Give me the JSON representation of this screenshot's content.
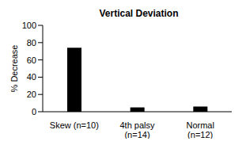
{
  "chart_data": {
    "type": "bar",
    "title": "Vertical Deviation",
    "y_label": "% Decrease",
    "categories": [
      "Skew (n=10)",
      "4th palsy\n(n=14)",
      "Normal\n(n=12)"
    ],
    "values": [
      74,
      5,
      6
    ],
    "color": "#000000",
    "ylim": [
      0,
      100
    ],
    "yticks": [
      0,
      20,
      40,
      60,
      80,
      100
    ],
    "grid": false
  }
}
